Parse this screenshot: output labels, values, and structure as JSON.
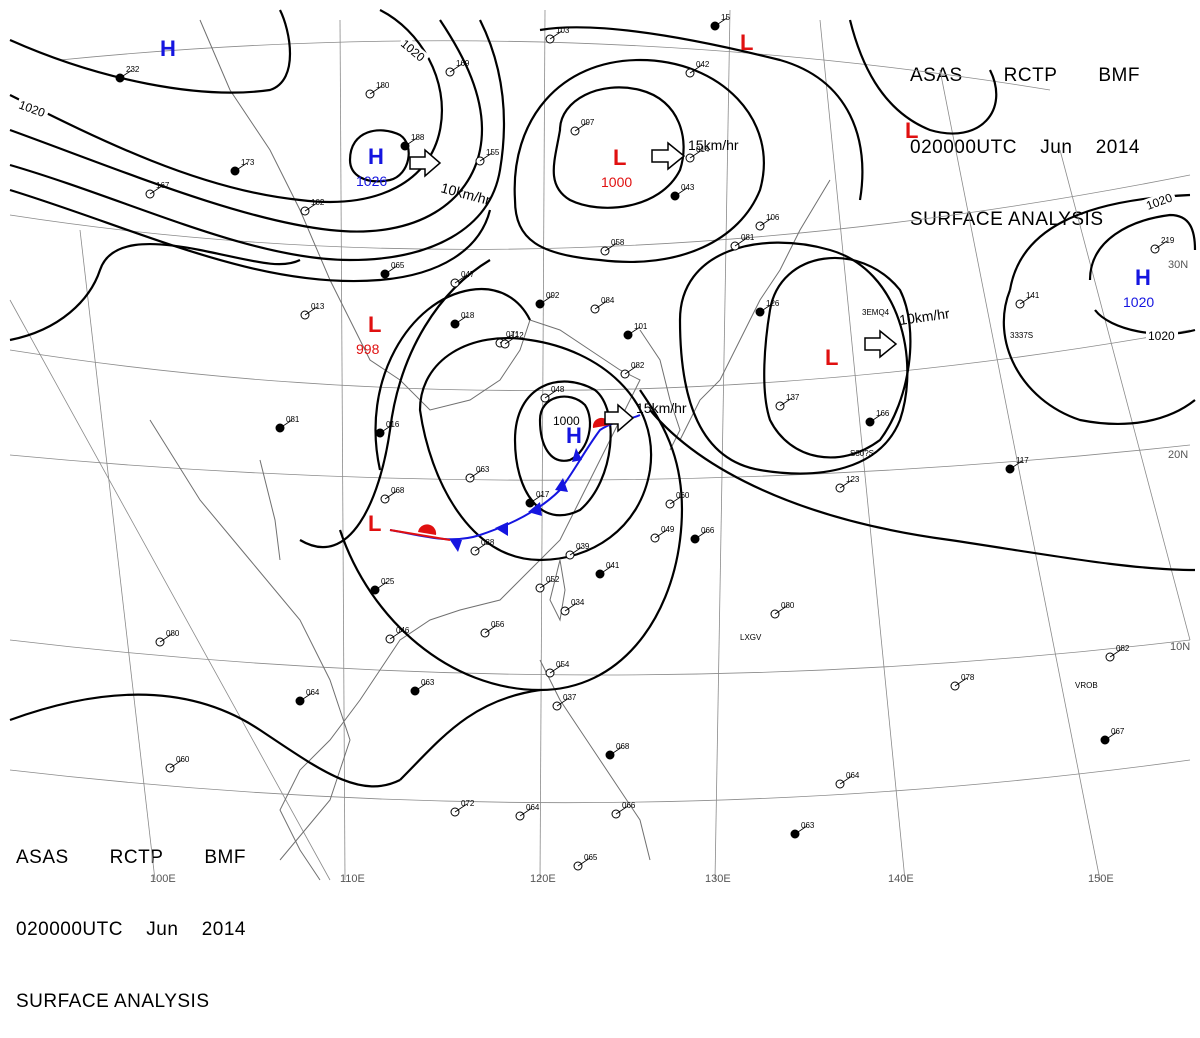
{
  "header": {
    "line1": [
      "ASAS",
      "RCTP",
      "BMF"
    ],
    "line2": [
      "020000UTC",
      "Jun",
      "2014"
    ],
    "line3": "SURFACE ANALYSIS"
  },
  "colors": {
    "high": "#1515e0",
    "low": "#e01010",
    "isobar": "#000000",
    "grid": "#8a8a8a",
    "coast": "#707070"
  },
  "grid_labels": {
    "lon": [
      "100E",
      "110E",
      "120E",
      "130E",
      "140E",
      "150E"
    ],
    "lat": [
      "30N",
      "20N",
      "10N"
    ]
  },
  "pressure_centers": [
    {
      "type": "H",
      "value": ""
    },
    {
      "type": "H",
      "value": "1026"
    },
    {
      "type": "L",
      "value": "1000"
    },
    {
      "type": "L",
      "value": ""
    },
    {
      "type": "L",
      "value": ""
    },
    {
      "type": "L",
      "value": ""
    },
    {
      "type": "H",
      "value": "1020"
    },
    {
      "type": "H",
      "value": ""
    },
    {
      "type": "L",
      "value": "998"
    },
    {
      "type": "L",
      "value": ""
    }
  ],
  "isobar_labels": [
    "1020",
    "1020",
    "1000",
    "1020",
    "1020"
  ],
  "motion_labels": [
    "10km/hr",
    "15km/hr",
    "10km/hr",
    "15km/hr"
  ],
  "station_values": [
    "232",
    "180",
    "169",
    "188",
    "155",
    "103",
    "15",
    "097",
    "014",
    "173",
    "167",
    "102",
    "065",
    "047",
    "084",
    "092",
    "058",
    "013",
    "018",
    "071",
    "112",
    "101",
    "048",
    "082",
    "016",
    "063",
    "068",
    "017",
    "038",
    "039",
    "041",
    "049",
    "060",
    "066",
    "052",
    "034",
    "025",
    "046",
    "056",
    "063",
    "054",
    "037",
    "064",
    "060",
    "080",
    "081",
    "072",
    "064",
    "068",
    "066",
    "065",
    "063",
    "064",
    "078",
    "067",
    "082",
    "080",
    "117",
    "123",
    "137",
    "166",
    "219",
    "141",
    "126",
    "106",
    "081",
    "043",
    "042"
  ],
  "station_ids": [
    "LXGV",
    "VROB",
    "3EMQ4",
    "3337S",
    "S30?S"
  ]
}
